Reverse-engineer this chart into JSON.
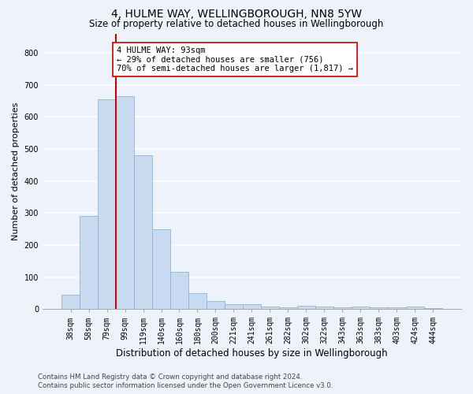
{
  "title": "4, HULME WAY, WELLINGBOROUGH, NN8 5YW",
  "subtitle": "Size of property relative to detached houses in Wellingborough",
  "xlabel": "Distribution of detached houses by size in Wellingborough",
  "ylabel": "Number of detached properties",
  "categories": [
    "38sqm",
    "58sqm",
    "79sqm",
    "99sqm",
    "119sqm",
    "140sqm",
    "160sqm",
    "180sqm",
    "200sqm",
    "221sqm",
    "241sqm",
    "261sqm",
    "282sqm",
    "302sqm",
    "322sqm",
    "343sqm",
    "363sqm",
    "383sqm",
    "403sqm",
    "424sqm",
    "444sqm"
  ],
  "values": [
    45,
    290,
    655,
    665,
    480,
    250,
    115,
    50,
    25,
    15,
    15,
    8,
    5,
    10,
    7,
    5,
    8,
    5,
    5,
    8,
    3
  ],
  "bar_color": "#c8daf0",
  "bar_edge_color": "#8ab4d8",
  "vline_x": 2.5,
  "vline_color": "#cc0000",
  "annotation_line1": "4 HULME WAY: 93sqm",
  "annotation_line2": "← 29% of detached houses are smaller (756)",
  "annotation_line3": "70% of semi-detached houses are larger (1,817) →",
  "annotation_box_color": "white",
  "annotation_box_edge": "#cc0000",
  "ylim": [
    0,
    860
  ],
  "yticks": [
    0,
    100,
    200,
    300,
    400,
    500,
    600,
    700,
    800
  ],
  "footer_line1": "Contains HM Land Registry data © Crown copyright and database right 2024.",
  "footer_line2": "Contains public sector information licensed under the Open Government Licence v3.0.",
  "background_color": "#eef2fa",
  "grid_color": "white",
  "title_fontsize": 10,
  "subtitle_fontsize": 8.5,
  "xlabel_fontsize": 8.5,
  "ylabel_fontsize": 8,
  "tick_fontsize": 7,
  "annotation_fontsize": 7.5,
  "footer_fontsize": 6.2
}
